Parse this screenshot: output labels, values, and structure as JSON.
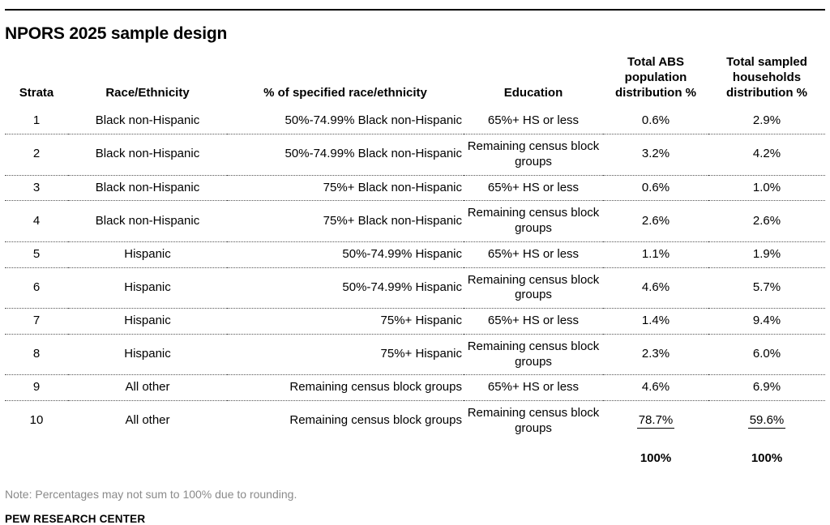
{
  "title": "NPORS 2025 sample design",
  "table": {
    "headers": {
      "strata": "Strata",
      "race": "Race/Ethnicity",
      "pct": "% of specified race/ethnicity",
      "education": "Education",
      "abs": "Total ABS population distribution %",
      "sampled": "Total sampled households distribution %"
    },
    "rows": [
      {
        "strata": "1",
        "race": "Black non-Hispanic",
        "pct": "50%-74.99% Black non-Hispanic",
        "education": "65%+ HS or less",
        "abs": "0.6%",
        "sampled": "2.9%"
      },
      {
        "strata": "2",
        "race": "Black non-Hispanic",
        "pct": "50%-74.99% Black non-Hispanic",
        "education": "Remaining census block groups",
        "abs": "3.2%",
        "sampled": "4.2%"
      },
      {
        "strata": "3",
        "race": "Black non-Hispanic",
        "pct": "75%+ Black non-Hispanic",
        "education": "65%+ HS or less",
        "abs": "0.6%",
        "sampled": "1.0%"
      },
      {
        "strata": "4",
        "race": "Black non-Hispanic",
        "pct": "75%+ Black non-Hispanic",
        "education": "Remaining census block groups",
        "abs": "2.6%",
        "sampled": "2.6%"
      },
      {
        "strata": "5",
        "race": "Hispanic",
        "pct": "50%-74.99% Hispanic",
        "education": "65%+ HS or less",
        "abs": "1.1%",
        "sampled": "1.9%"
      },
      {
        "strata": "6",
        "race": "Hispanic",
        "pct": "50%-74.99% Hispanic",
        "education": "Remaining census block groups",
        "abs": "4.6%",
        "sampled": "5.7%"
      },
      {
        "strata": "7",
        "race": "Hispanic",
        "pct": "75%+ Hispanic",
        "education": "65%+ HS or less",
        "abs": "1.4%",
        "sampled": "9.4%"
      },
      {
        "strata": "8",
        "race": "Hispanic",
        "pct": "75%+ Hispanic",
        "education": "Remaining census block groups",
        "abs": "2.3%",
        "sampled": "6.0%"
      },
      {
        "strata": "9",
        "race": "All other",
        "pct": "Remaining census block groups",
        "education": "65%+ HS or less",
        "abs": "4.6%",
        "sampled": "6.9%"
      },
      {
        "strata": "10",
        "race": "All other",
        "pct": "Remaining census block groups",
        "education": "Remaining census block groups",
        "abs": "78.7%",
        "sampled": "59.6%"
      }
    ],
    "totals": {
      "abs": "100%",
      "sampled": "100%"
    }
  },
  "note": "Note: Percentages may not sum to 100% due to rounding.",
  "source": "PEW RESEARCH CENTER",
  "colors": {
    "text": "#000000",
    "note_gray": "#8a8a8a",
    "rule": "#000000"
  }
}
